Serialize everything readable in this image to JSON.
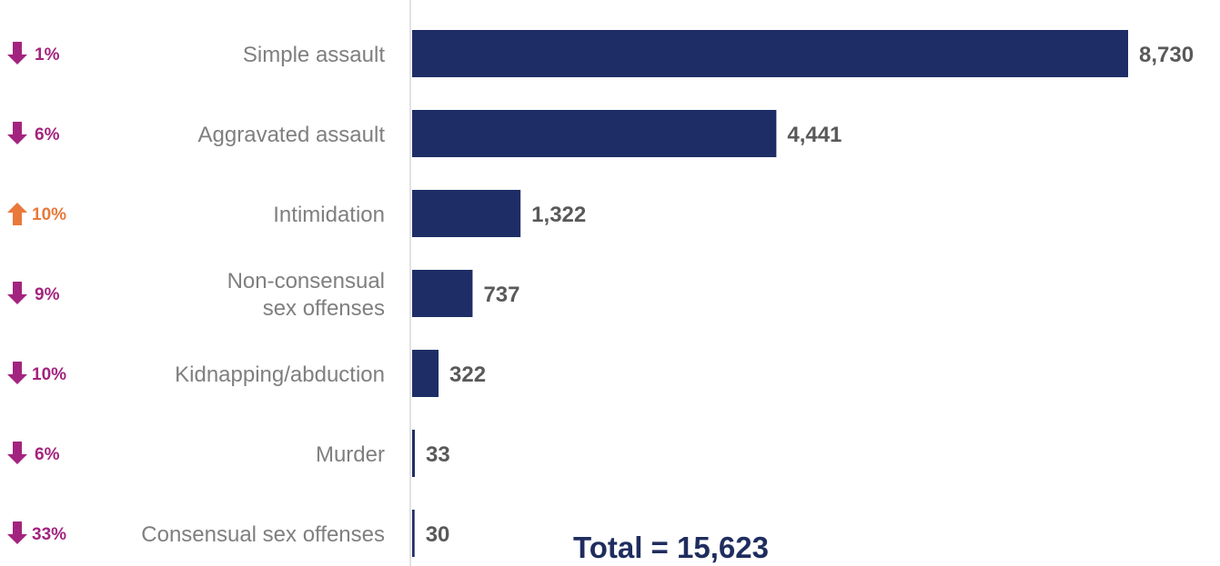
{
  "chart_data": {
    "type": "bar",
    "orientation": "horizontal",
    "categories": [
      "Simple assault",
      "Aggravated assault",
      "Intimidation",
      "Non-consensual sex offenses",
      "Kidnapping/abduction",
      "Murder",
      "Consensual sex offenses"
    ],
    "category_lines": [
      [
        "Simple assault"
      ],
      [
        "Aggravated assault"
      ],
      [
        "Intimidation"
      ],
      [
        "Non-consensual",
        "sex offenses"
      ],
      [
        "Kidnapping/abduction"
      ],
      [
        "Murder"
      ],
      [
        "Consensual sex offenses"
      ]
    ],
    "values": [
      8730,
      4441,
      1322,
      737,
      322,
      33,
      30
    ],
    "value_labels": [
      "8,730",
      "4,441",
      "1,322",
      "737",
      "322",
      "33",
      "30"
    ],
    "changes": [
      {
        "direction": "down",
        "label": "1%"
      },
      {
        "direction": "down",
        "label": "6%"
      },
      {
        "direction": "up",
        "label": "10%"
      },
      {
        "direction": "down",
        "label": "9%"
      },
      {
        "direction": "down",
        "label": "10%"
      },
      {
        "direction": "down",
        "label": "6%"
      },
      {
        "direction": "down",
        "label": "33%"
      }
    ],
    "xlim": [
      0,
      8730
    ],
    "grid": false,
    "total_label": "Total = 15,623",
    "colors": {
      "bar": "#1f2d66",
      "down": "#a3247f",
      "up": "#e8793b",
      "axis": "#d9d9d9",
      "category_text": "#7f7f7f",
      "value_text": "#595959",
      "total_text": "#1f2d5e"
    }
  }
}
